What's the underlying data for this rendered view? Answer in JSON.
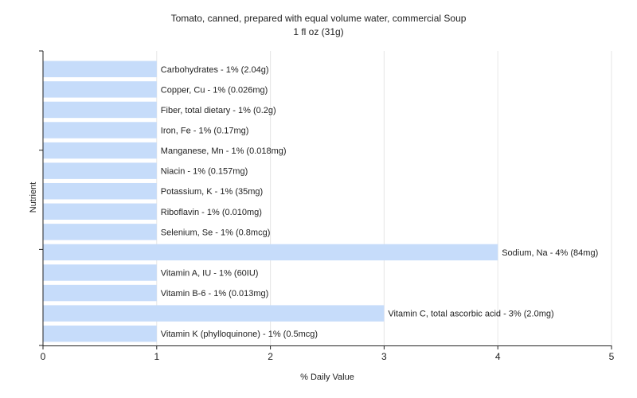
{
  "chart_data": {
    "type": "bar",
    "orientation": "horizontal",
    "title": "Tomato, canned, prepared with equal volume water, commercial Soup",
    "subtitle": "1 fl oz (31g)",
    "xlabel": "% Daily Value",
    "ylabel": "Nutrient",
    "xlim": [
      0,
      5
    ],
    "xticks": [
      "0",
      "1",
      "2",
      "3",
      "4",
      "5"
    ],
    "grid": true,
    "colors": {
      "bar": "#c6dcfa",
      "grid": "#e6e6e6",
      "axis": "#222222"
    },
    "categories": [
      "Carbohydrates",
      "Copper, Cu",
      "Fiber, total dietary",
      "Iron, Fe",
      "Manganese, Mn",
      "Niacin",
      "Potassium, K",
      "Riboflavin",
      "Selenium, Se",
      "Sodium, Na",
      "Vitamin A, IU",
      "Vitamin B-6",
      "Vitamin C, total ascorbic acid",
      "Vitamin K (phylloquinone)"
    ],
    "values": [
      1,
      1,
      1,
      1,
      1,
      1,
      1,
      1,
      1,
      4,
      1,
      1,
      3,
      1
    ],
    "labels": [
      "Carbohydrates - 1% (2.04g)",
      "Copper, Cu - 1% (0.026mg)",
      "Fiber, total dietary - 1% (0.2g)",
      "Iron, Fe - 1% (0.17mg)",
      "Manganese, Mn - 1% (0.018mg)",
      "Niacin - 1% (0.157mg)",
      "Potassium, K - 1% (35mg)",
      "Riboflavin - 1% (0.010mg)",
      "Selenium, Se - 1% (0.8mcg)",
      "Sodium, Na - 4% (84mg)",
      "Vitamin A, IU - 1% (60IU)",
      "Vitamin B-6 - 1% (0.013mg)",
      "Vitamin C, total ascorbic acid - 3% (2.0mg)",
      "Vitamin K (phylloquinone) - 1% (0.5mcg)"
    ]
  }
}
